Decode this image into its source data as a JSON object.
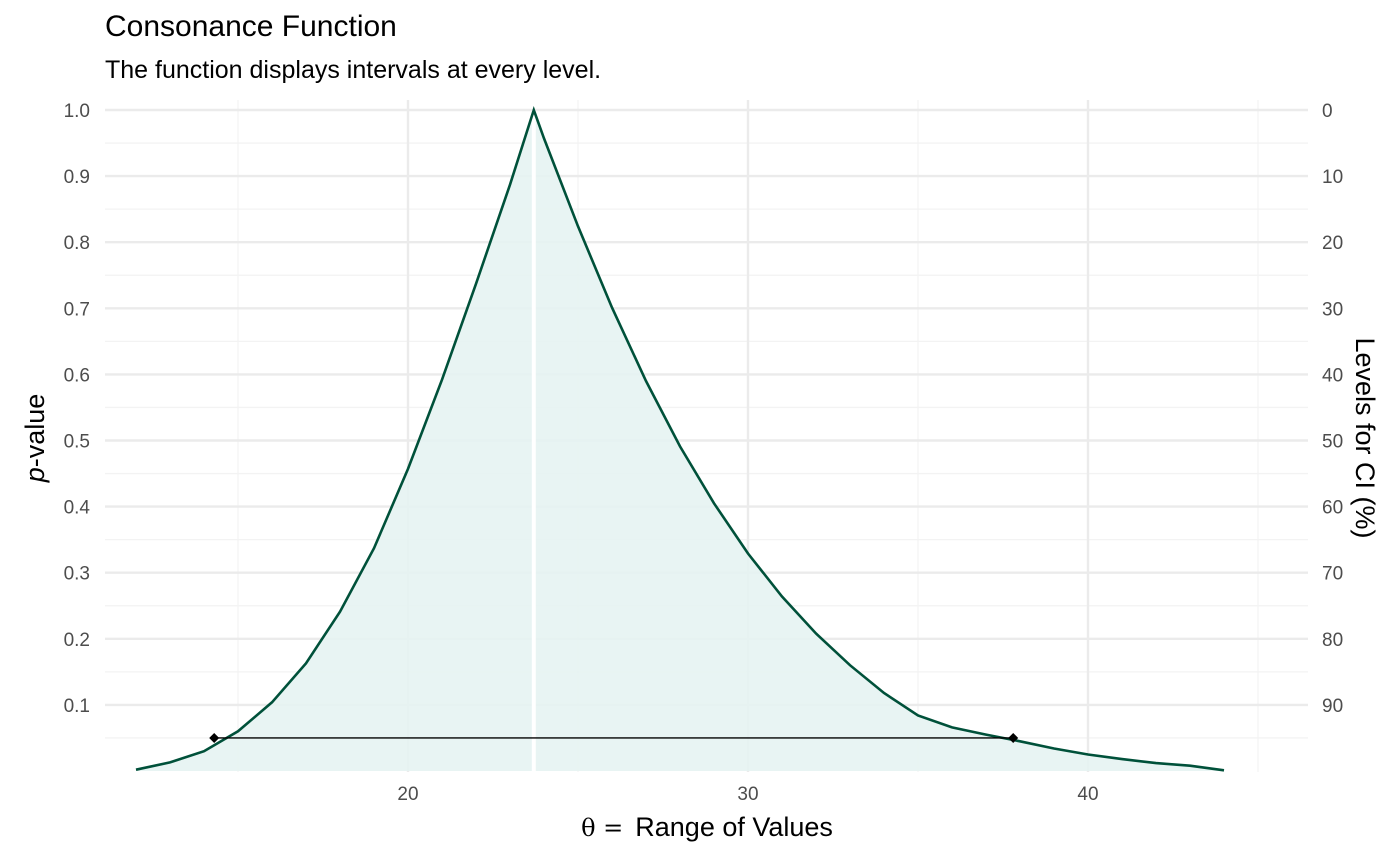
{
  "title": "Consonance Function",
  "subtitle": "The function displays intervals at every level.",
  "colors": {
    "curve": "#00513a",
    "fill": "#e6f3f2",
    "grid_major": "#ebebeb",
    "grid_minor": "#f3f3f3",
    "point_estimate_line": "#ffffff",
    "interval": "#000000"
  },
  "chart_data": {
    "type": "area",
    "title": "Consonance Function",
    "subtitle": "The function displays intervals at every level.",
    "xlabel_symbol": "θ =",
    "xlabel": "Range of Values",
    "ylabel_italic": "p",
    "ylabel_rest": "-value",
    "y2label": "Levels for CI (%)",
    "xlim": [
      11,
      45
    ],
    "ylim": [
      0,
      1
    ],
    "x_ticks": [
      20,
      30,
      40
    ],
    "y_ticks": [
      0.1,
      0.2,
      0.3,
      0.4,
      0.5,
      0.6,
      0.7,
      0.8,
      0.9,
      1.0
    ],
    "y_tick_labels": [
      "0.1",
      "0.2",
      "0.3",
      "0.4",
      "0.5",
      "0.6",
      "0.7",
      "0.8",
      "0.9",
      "1.0"
    ],
    "y2_ticks": [
      0,
      10,
      20,
      30,
      40,
      50,
      60,
      70,
      80,
      90
    ],
    "grid": true,
    "series": [
      {
        "x": [
          12.0,
          13.0,
          14.0,
          15.0,
          16.0,
          17.0,
          18.0,
          19.0,
          20.0,
          21.0,
          22.0,
          23.0,
          23.7,
          24.0,
          25.0,
          26.0,
          27.0,
          28.0,
          29.0,
          30.0,
          31.0,
          32.0,
          33.0,
          34.0,
          35.0,
          36.0,
          37.0,
          38.0,
          39.0,
          40.0,
          41.0,
          42.0,
          43.0,
          44.0
        ],
        "values": [
          0.002,
          0.013,
          0.03,
          0.06,
          0.104,
          0.163,
          0.241,
          0.337,
          0.457,
          0.592,
          0.737,
          0.887,
          1.0,
          0.957,
          0.824,
          0.701,
          0.59,
          0.491,
          0.405,
          0.329,
          0.264,
          0.208,
          0.16,
          0.118,
          0.084,
          0.066,
          0.055,
          0.045,
          0.034,
          0.025,
          0.018,
          0.012,
          0.008,
          0.001
        ]
      }
    ],
    "point_estimate": 23.7,
    "interval": {
      "lower": 14.3,
      "upper": 37.8,
      "p": 0.05
    }
  }
}
